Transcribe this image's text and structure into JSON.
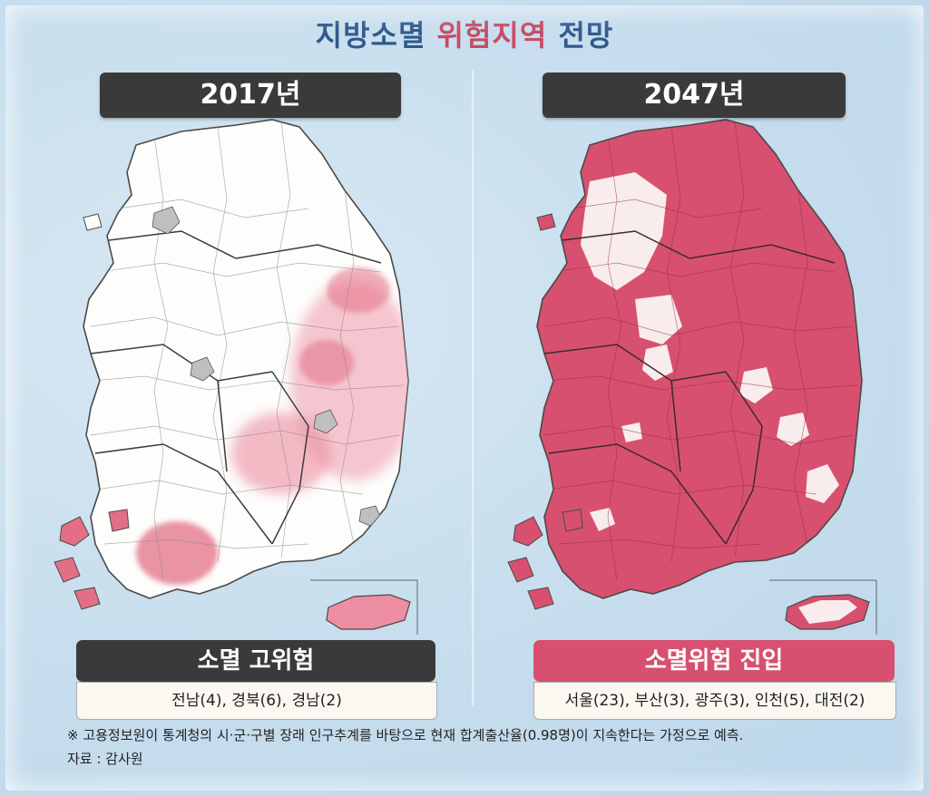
{
  "title": {
    "part1": "지방소멸",
    "part2": "위험지역",
    "part3": "전망"
  },
  "left": {
    "year": "2017년",
    "category": "소멸 고위험",
    "regions": "전남(4), 경북(6), 경남(2)"
  },
  "right": {
    "year": "2047년",
    "category": "소멸위험 진입",
    "regions": "서울(23), 부산(3), 광주(3), 인천(5), 대전(2)"
  },
  "note": "※ 고용정보원이 통계청의 시·군·구별 장래 인구추계를 바탕으로 현재 합계출산율(0.98명)이 지속한다는 가정으로 예측.",
  "source": "자료 : 감사원",
  "colors": {
    "sea": "#c9dfee",
    "land_safe": "#ffffff",
    "risk_high": "#e36f86",
    "risk_entry": "#d8506f",
    "label_dark": "#3a3a3a"
  }
}
